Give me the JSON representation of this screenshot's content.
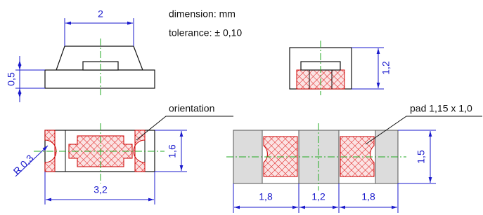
{
  "notes": {
    "dimension": "dimension: mm",
    "tolerance": "tolerance: ± 0,10"
  },
  "side_view": {
    "width": "2",
    "height": "0,5"
  },
  "end_view": {
    "height": "1,2"
  },
  "top_view": {
    "label": "orientation",
    "radius": "R 0,3",
    "width": "3,2",
    "height": "1,6"
  },
  "footprint": {
    "label": "pad 1,15 x 1,0",
    "height": "1,5",
    "dims": [
      "1,8",
      "1,2",
      "1,8"
    ]
  }
}
